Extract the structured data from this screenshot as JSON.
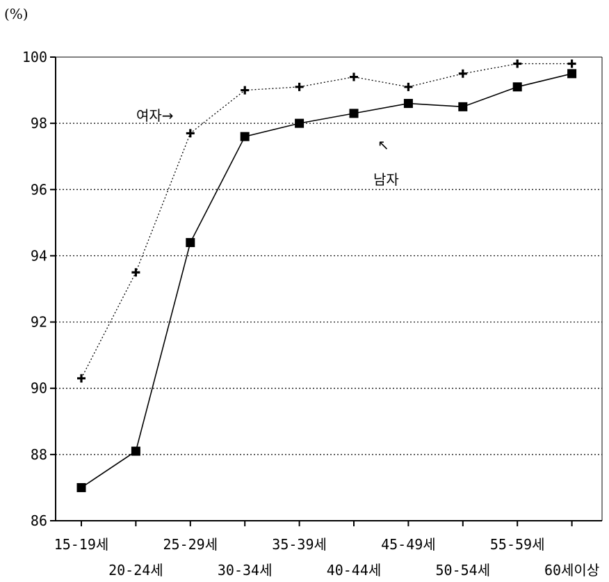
{
  "chart_data": {
    "type": "line",
    "unit_label": "(%)",
    "title": "",
    "xlabel": "",
    "ylabel": "",
    "categories": [
      "15-19세",
      "20-24세",
      "25-29세",
      "30-34세",
      "35-39세",
      "40-44세",
      "45-49세",
      "50-54세",
      "55-59세",
      "60세이상"
    ],
    "ylim": [
      86,
      100
    ],
    "yticks": [
      "86",
      "88",
      "90",
      "92",
      "94",
      "96",
      "98",
      "100"
    ],
    "grid": "horizontal-dotted",
    "legend": "none",
    "series": [
      {
        "name": "여자",
        "values": [
          90.3,
          93.5,
          97.7,
          99.0,
          99.1,
          99.4,
          99.1,
          99.5,
          99.8,
          99.8
        ],
        "style": "dotted",
        "marker": "plus",
        "color": "#000000"
      },
      {
        "name": "남자",
        "values": [
          87.0,
          88.1,
          94.4,
          97.6,
          98.0,
          98.3,
          98.6,
          98.5,
          99.1,
          99.5
        ],
        "style": "solid",
        "marker": "square",
        "color": "#000000"
      }
    ],
    "annotations": [
      {
        "label_key": "female",
        "text": "여자→"
      },
      {
        "label_key": "male_arrow",
        "text": "↖"
      },
      {
        "label_key": "male",
        "text": "남자"
      }
    ]
  }
}
